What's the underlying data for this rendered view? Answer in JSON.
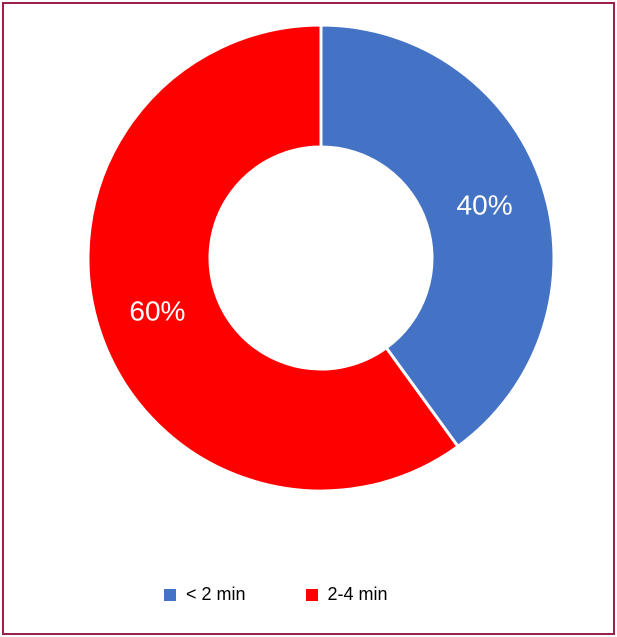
{
  "chart_data": {
    "type": "pie",
    "donut": true,
    "title": "",
    "series": [
      {
        "name": "< 2 min",
        "value": 40,
        "label": "40%",
        "color": "#4472c4"
      },
      {
        "name": "2-4 min",
        "value": 60,
        "label": "60%",
        "color": "#ff0000"
      }
    ],
    "legend_position": "bottom"
  },
  "frame_color": "#9b2149"
}
